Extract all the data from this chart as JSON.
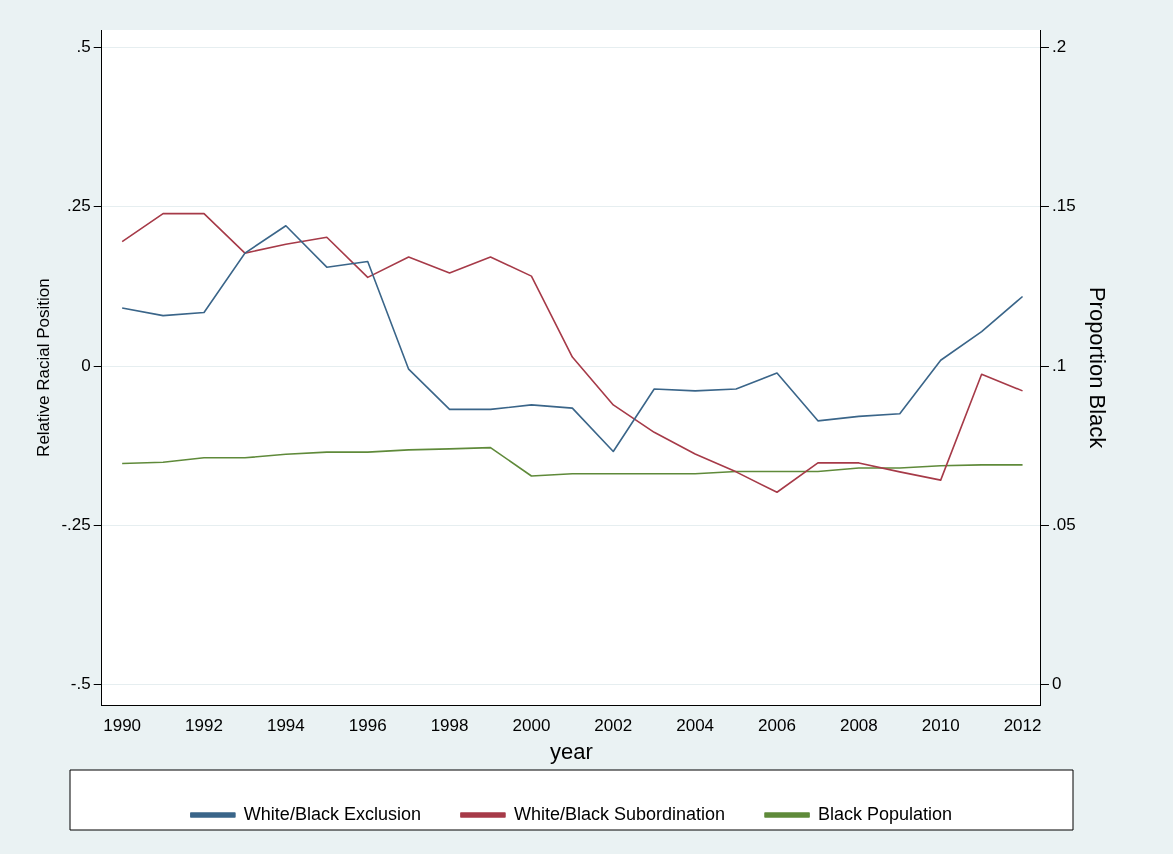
{
  "chart_data": {
    "type": "line",
    "xlabel": "year",
    "ylabel": "Relative Racial Position",
    "y2label": "Proportion Black",
    "x": [
      1990,
      1991,
      1992,
      1993,
      1994,
      1995,
      1996,
      1997,
      1998,
      1999,
      2000,
      2001,
      2002,
      2003,
      2004,
      2005,
      2006,
      2007,
      2008,
      2009,
      2010,
      2011,
      2012
    ],
    "series": [
      {
        "name": "White/Black Exclusion",
        "color": "#3a6589",
        "values": [
          0.091,
          0.079,
          0.084,
          0.177,
          0.22,
          0.155,
          0.164,
          -0.005,
          -0.068,
          -0.068,
          -0.061,
          -0.066,
          -0.134,
          -0.036,
          -0.039,
          -0.036,
          -0.011,
          -0.086,
          -0.079,
          -0.075,
          0.009,
          0.054,
          0.109
        ]
      },
      {
        "name": "White/Black Subordination",
        "color": "#a63a48",
        "values": [
          0.195,
          0.239,
          0.239,
          0.177,
          0.191,
          0.202,
          0.139,
          0.171,
          0.146,
          0.171,
          0.141,
          0.014,
          -0.061,
          -0.104,
          -0.138,
          -0.166,
          -0.198,
          -0.152,
          -0.152,
          -0.166,
          -0.179,
          -0.013,
          -0.039
        ]
      },
      {
        "name": "Black Population",
        "color": "#5f8a3a",
        "axis": "y2",
        "values": [
          0.0694,
          0.0698,
          0.0712,
          0.0712,
          0.0723,
          0.073,
          0.073,
          0.0737,
          0.074,
          0.0744,
          0.0655,
          0.0662,
          0.0662,
          0.0662,
          0.0662,
          0.0669,
          0.0669,
          0.0669,
          0.068,
          0.068,
          0.0687,
          0.069,
          0.069
        ]
      }
    ],
    "xlim": [
      1989.5,
      2012.45
    ],
    "xticks": [
      1990,
      1992,
      1994,
      1996,
      1998,
      2000,
      2002,
      2004,
      2006,
      2008,
      2010,
      2012
    ],
    "ylim": [
      -0.532,
      0.527
    ],
    "yticks": [
      {
        "value": -0.5,
        "label": "-.5"
      },
      {
        "value": -0.25,
        "label": "-.25"
      },
      0,
      {
        "value": 0.25,
        "label": ".25"
      },
      {
        "value": 0.5,
        "label": ".5"
      }
    ],
    "y2lim": [
      -0.0064,
      0.2054
    ],
    "y2ticks": [
      0,
      {
        "value": 0.05,
        "label": ".05"
      },
      {
        "value": 0.1,
        "label": ".1"
      },
      {
        "value": 0.15,
        "label": ".15"
      },
      {
        "value": 0.2,
        "label": ".2"
      }
    ],
    "grid": "y",
    "legend": "bottom",
    "marker": "none",
    "line_style": "solid"
  }
}
